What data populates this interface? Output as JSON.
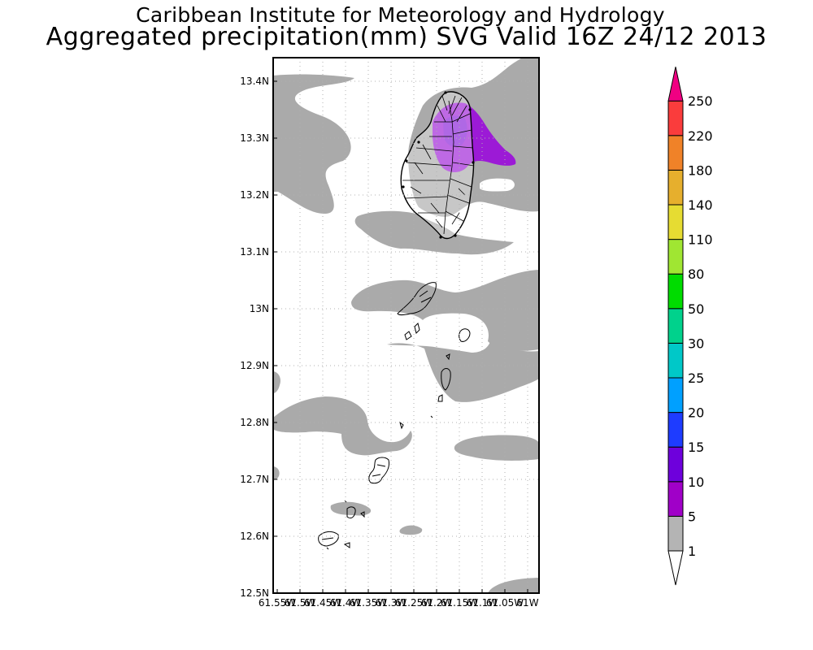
{
  "header": {
    "line1": "Caribbean Institute for Meteorology and Hydrology",
    "line2": "Aggregated precipitation(mm) SVG Valid 16Z 24/12 2013"
  },
  "map": {
    "lat_labels": [
      "13.4N",
      "13.3N",
      "13.2N",
      "13.1N",
      "13N",
      "12.9N",
      "12.8N",
      "12.7N",
      "12.6N",
      "12.5N"
    ],
    "lon_labels": [
      "61.55W",
      "61.5W",
      "61.45W",
      "61.4W",
      "61.35W",
      "61.3W",
      "61.25W",
      "61.2W",
      "61.15W",
      "61.1W",
      "61.05W",
      "61W"
    ]
  },
  "legend": {
    "labels": [
      "1",
      "5",
      "10",
      "15",
      "20",
      "25",
      "30",
      "50",
      "80",
      "110",
      "140",
      "180",
      "220",
      "250"
    ],
    "colors": [
      "#ffffff",
      "#b4b4b4",
      "#a000c8",
      "#6e00dc",
      "#1e3cff",
      "#00a0ff",
      "#00c8c8",
      "#00d28c",
      "#00dc00",
      "#a0e632",
      "#e6dc32",
      "#e6af2d",
      "#f08228",
      "#fa3c3c",
      "#f00082"
    ]
  },
  "colors": {
    "rain_light": "#aaaaaa",
    "rain_medium": "#9c1ad6",
    "frame": "#000000",
    "grid": "#b0b0b0"
  }
}
